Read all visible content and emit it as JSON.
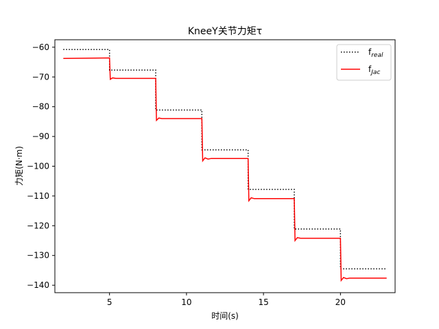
{
  "chart_data": {
    "type": "line",
    "title": "KneeY关节力矩τ",
    "xlabel": "时间(s)",
    "ylabel": "力矩(N·m)",
    "xlim": [
      1.45,
      23.55
    ],
    "ylim": [
      -142.5,
      -57.5
    ],
    "xticks": [
      5,
      10,
      15,
      20
    ],
    "yticks": [
      -60,
      -70,
      -80,
      -90,
      -100,
      -110,
      -120,
      -130,
      -140
    ],
    "grid": false,
    "legend_position": "top-right",
    "series": [
      {
        "name": "f",
        "subscript": "real",
        "color": "#000000",
        "style": "dotted",
        "x": [
          2.0,
          5.0,
          5.0,
          8.0,
          8.0,
          11.0,
          11.0,
          14.0,
          14.0,
          17.0,
          17.0,
          20.0,
          20.0,
          23.0
        ],
        "y": [
          -60.8,
          -60.8,
          -67.7,
          -67.7,
          -81.1,
          -81.1,
          -94.5,
          -94.5,
          -107.8,
          -107.8,
          -121.1,
          -121.1,
          -134.5,
          -134.5
        ]
      },
      {
        "name": "f",
        "subscript": "Jac",
        "color": "#ff0000",
        "style": "solid",
        "x": [
          2.0,
          5.0,
          5.05,
          5.2,
          5.4,
          8.0,
          8.05,
          8.2,
          8.4,
          11.0,
          11.05,
          11.2,
          11.4,
          11.6,
          14.0,
          14.05,
          14.2,
          14.4,
          17.0,
          17.05,
          17.2,
          17.4,
          20.0,
          20.05,
          20.2,
          20.4,
          20.6,
          23.0
        ],
        "y": [
          -63.8,
          -63.6,
          -70.8,
          -70.3,
          -70.5,
          -70.5,
          -84.6,
          -83.8,
          -84.0,
          -84.0,
          -98.2,
          -97.2,
          -97.6,
          -97.4,
          -97.4,
          -111.6,
          -110.6,
          -110.9,
          -110.9,
          -125.0,
          -124.0,
          -124.2,
          -124.2,
          -138.4,
          -137.4,
          -137.8,
          -137.6,
          -137.6
        ]
      }
    ]
  }
}
